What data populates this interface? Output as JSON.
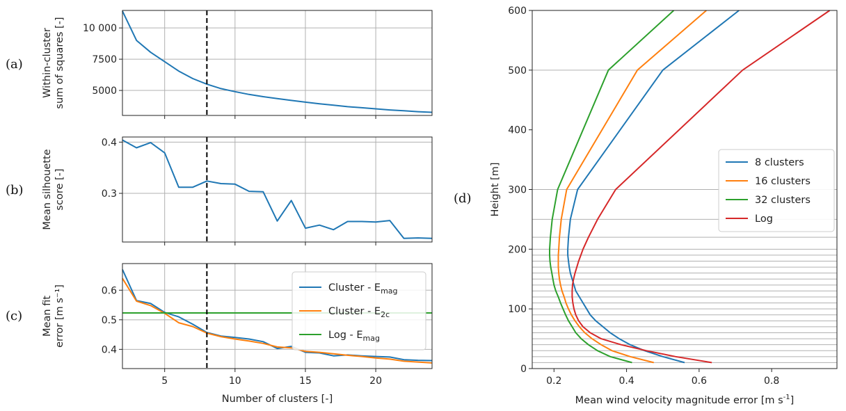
{
  "chart_data": [
    {
      "id": "a",
      "panel_label": "(a)",
      "type": "line",
      "ylabel_lines": [
        "Within-cluster",
        "sum of squares [-]"
      ],
      "xlabel": "",
      "xlim": [
        2,
        24
      ],
      "ylim": [
        3000,
        11400
      ],
      "xticks": [
        5,
        10,
        15,
        20
      ],
      "xtick_labels_shown": false,
      "yticks": [
        5000,
        7500,
        10000
      ],
      "ytick_labels": [
        "5000",
        "7500",
        "10 000"
      ],
      "grid": true,
      "vline_x": 8,
      "series": [
        {
          "color": "#1f77b4",
          "x": [
            2,
            3,
            4,
            5,
            6,
            7,
            8,
            9,
            10,
            11,
            12,
            13,
            14,
            15,
            16,
            17,
            18,
            19,
            20,
            21,
            22,
            23,
            24
          ],
          "y": [
            11350,
            9000,
            8050,
            7300,
            6550,
            5950,
            5500,
            5150,
            4900,
            4680,
            4500,
            4350,
            4200,
            4060,
            3930,
            3820,
            3700,
            3620,
            3530,
            3440,
            3370,
            3300,
            3250
          ]
        }
      ]
    },
    {
      "id": "b",
      "panel_label": "(b)",
      "type": "line",
      "ylabel_lines": [
        "Mean silhouette",
        "score [-]"
      ],
      "xlabel": "",
      "xlim": [
        2,
        24
      ],
      "ylim": [
        0.205,
        0.41
      ],
      "xticks": [
        5,
        10,
        15,
        20
      ],
      "xtick_labels_shown": false,
      "yticks": [
        0.3,
        0.4
      ],
      "ytick_labels": [
        "0.3",
        "0.4"
      ],
      "grid": true,
      "vline_x": 8,
      "series": [
        {
          "color": "#1f77b4",
          "x": [
            2,
            3,
            4,
            5,
            6,
            7,
            8,
            9,
            10,
            11,
            12,
            13,
            14,
            15,
            16,
            17,
            18,
            19,
            20,
            21,
            22,
            23,
            24
          ],
          "y": [
            0.404,
            0.389,
            0.399,
            0.379,
            0.312,
            0.312,
            0.324,
            0.319,
            0.318,
            0.304,
            0.303,
            0.246,
            0.286,
            0.232,
            0.238,
            0.229,
            0.245,
            0.245,
            0.244,
            0.247,
            0.212,
            0.213,
            0.212
          ]
        }
      ]
    },
    {
      "id": "c",
      "panel_label": "(c)",
      "type": "line",
      "ylabel_lines": [
        "Mean fit",
        "error [m s⁻¹]"
      ],
      "xlabel": "Number of clusters [-]",
      "xlim": [
        2,
        24
      ],
      "ylim": [
        0.335,
        0.69
      ],
      "xticks": [
        5,
        10,
        15,
        20
      ],
      "xtick_labels_shown": true,
      "xtick_labels": [
        "5",
        "10",
        "15",
        "20"
      ],
      "yticks": [
        0.4,
        0.5,
        0.6
      ],
      "ytick_labels": [
        "0.4",
        "0.5",
        "0.6"
      ],
      "grid": true,
      "vline_x": 8,
      "legend": {
        "placement": "top-right"
      },
      "series": [
        {
          "name_main": "Cluster - E",
          "name_sub": "mag",
          "color": "#1f77b4",
          "x": [
            2,
            3,
            4,
            5,
            6,
            7,
            8,
            9,
            10,
            11,
            12,
            13,
            14,
            15,
            16,
            17,
            18,
            19,
            20,
            21,
            22,
            23,
            24
          ],
          "y": [
            0.67,
            0.565,
            0.555,
            0.525,
            0.51,
            0.485,
            0.457,
            0.445,
            0.44,
            0.435,
            0.426,
            0.403,
            0.41,
            0.39,
            0.388,
            0.378,
            0.381,
            0.378,
            0.376,
            0.374,
            0.365,
            0.363,
            0.362
          ]
        },
        {
          "name_main": "Cluster - E",
          "name_sub": "2c",
          "color": "#ff7f0e",
          "x": [
            2,
            3,
            4,
            5,
            6,
            7,
            8,
            9,
            10,
            11,
            12,
            13,
            14,
            15,
            16,
            17,
            18,
            19,
            20,
            21,
            22,
            23,
            24
          ],
          "y": [
            0.64,
            0.563,
            0.548,
            0.522,
            0.49,
            0.477,
            0.455,
            0.443,
            0.435,
            0.428,
            0.42,
            0.408,
            0.405,
            0.393,
            0.39,
            0.385,
            0.38,
            0.376,
            0.371,
            0.367,
            0.36,
            0.357,
            0.354
          ]
        },
        {
          "name_main": "Log - E",
          "name_sub": "mag",
          "color": "#2ca02c",
          "x": [
            2,
            24
          ],
          "y": [
            0.523,
            0.523
          ]
        }
      ]
    },
    {
      "id": "d",
      "panel_label": "(d)",
      "type": "line",
      "xlabel_main": "Mean wind velocity magnitude error [m s",
      "xlabel_sup": "-1",
      "xlabel_tail": "]",
      "ylabel": "Height [m]",
      "xlim": [
        0.14,
        0.98
      ],
      "ylim": [
        0,
        600
      ],
      "xticks": [
        0.2,
        0.4,
        0.6,
        0.8
      ],
      "xtick_labels": [
        "0.2",
        "0.4",
        "0.6",
        "0.8"
      ],
      "yticks": [
        0,
        100,
        200,
        300,
        400,
        500,
        600
      ],
      "ytick_labels": [
        "0",
        "100",
        "200",
        "300",
        "400",
        "500",
        "600"
      ],
      "grid_heights": [
        10,
        20,
        30,
        40,
        50,
        60,
        70,
        80,
        90,
        100,
        110,
        120,
        130,
        140,
        150,
        160,
        170,
        180,
        190,
        200,
        220,
        250,
        300,
        500,
        600
      ],
      "legend": {
        "placement": "center-right"
      },
      "series": [
        {
          "name": "8 clusters",
          "color": "#1f77b4",
          "x": [
            0.56,
            0.5,
            0.45,
            0.41,
            0.38,
            0.355,
            0.335,
            0.315,
            0.3,
            0.29,
            0.28,
            0.27,
            0.26,
            0.255,
            0.25,
            0.245,
            0.242,
            0.24,
            0.238,
            0.238,
            0.24,
            0.245,
            0.265,
            0.5,
            0.71
          ],
          "y": [
            10,
            20,
            30,
            40,
            50,
            60,
            70,
            80,
            90,
            100,
            110,
            120,
            130,
            140,
            150,
            160,
            170,
            180,
            190,
            200,
            220,
            250,
            300,
            500,
            600
          ]
        },
        {
          "name": "16 clusters",
          "color": "#ff7f0e",
          "x": [
            0.475,
            0.41,
            0.36,
            0.33,
            0.305,
            0.285,
            0.27,
            0.258,
            0.248,
            0.24,
            0.233,
            0.228,
            0.222,
            0.218,
            0.215,
            0.213,
            0.212,
            0.212,
            0.212,
            0.213,
            0.215,
            0.22,
            0.235,
            0.43,
            0.62
          ],
          "y": [
            10,
            20,
            30,
            40,
            50,
            60,
            70,
            80,
            90,
            100,
            110,
            120,
            130,
            140,
            150,
            160,
            170,
            180,
            190,
            200,
            220,
            250,
            300,
            500,
            600
          ]
        },
        {
          "name": "32 clusters",
          "color": "#2ca02c",
          "x": [
            0.415,
            0.355,
            0.32,
            0.295,
            0.275,
            0.26,
            0.25,
            0.24,
            0.232,
            0.225,
            0.218,
            0.212,
            0.205,
            0.2,
            0.197,
            0.194,
            0.191,
            0.189,
            0.188,
            0.188,
            0.19,
            0.195,
            0.21,
            0.35,
            0.53
          ],
          "y": [
            10,
            20,
            30,
            40,
            50,
            60,
            70,
            80,
            90,
            100,
            110,
            120,
            130,
            140,
            150,
            160,
            170,
            180,
            190,
            200,
            220,
            250,
            300,
            500,
            600
          ]
        },
        {
          "name": "Log",
          "color": "#d62728",
          "x": [
            0.635,
            0.535,
            0.455,
            0.385,
            0.33,
            0.3,
            0.28,
            0.268,
            0.26,
            0.255,
            0.252,
            0.25,
            0.25,
            0.251,
            0.254,
            0.258,
            0.263,
            0.268,
            0.274,
            0.28,
            0.295,
            0.32,
            0.37,
            0.72,
            0.96
          ],
          "y": [
            10,
            20,
            30,
            40,
            50,
            60,
            70,
            80,
            90,
            100,
            110,
            120,
            130,
            140,
            150,
            160,
            170,
            180,
            190,
            200,
            220,
            250,
            300,
            500,
            600
          ]
        }
      ]
    }
  ]
}
